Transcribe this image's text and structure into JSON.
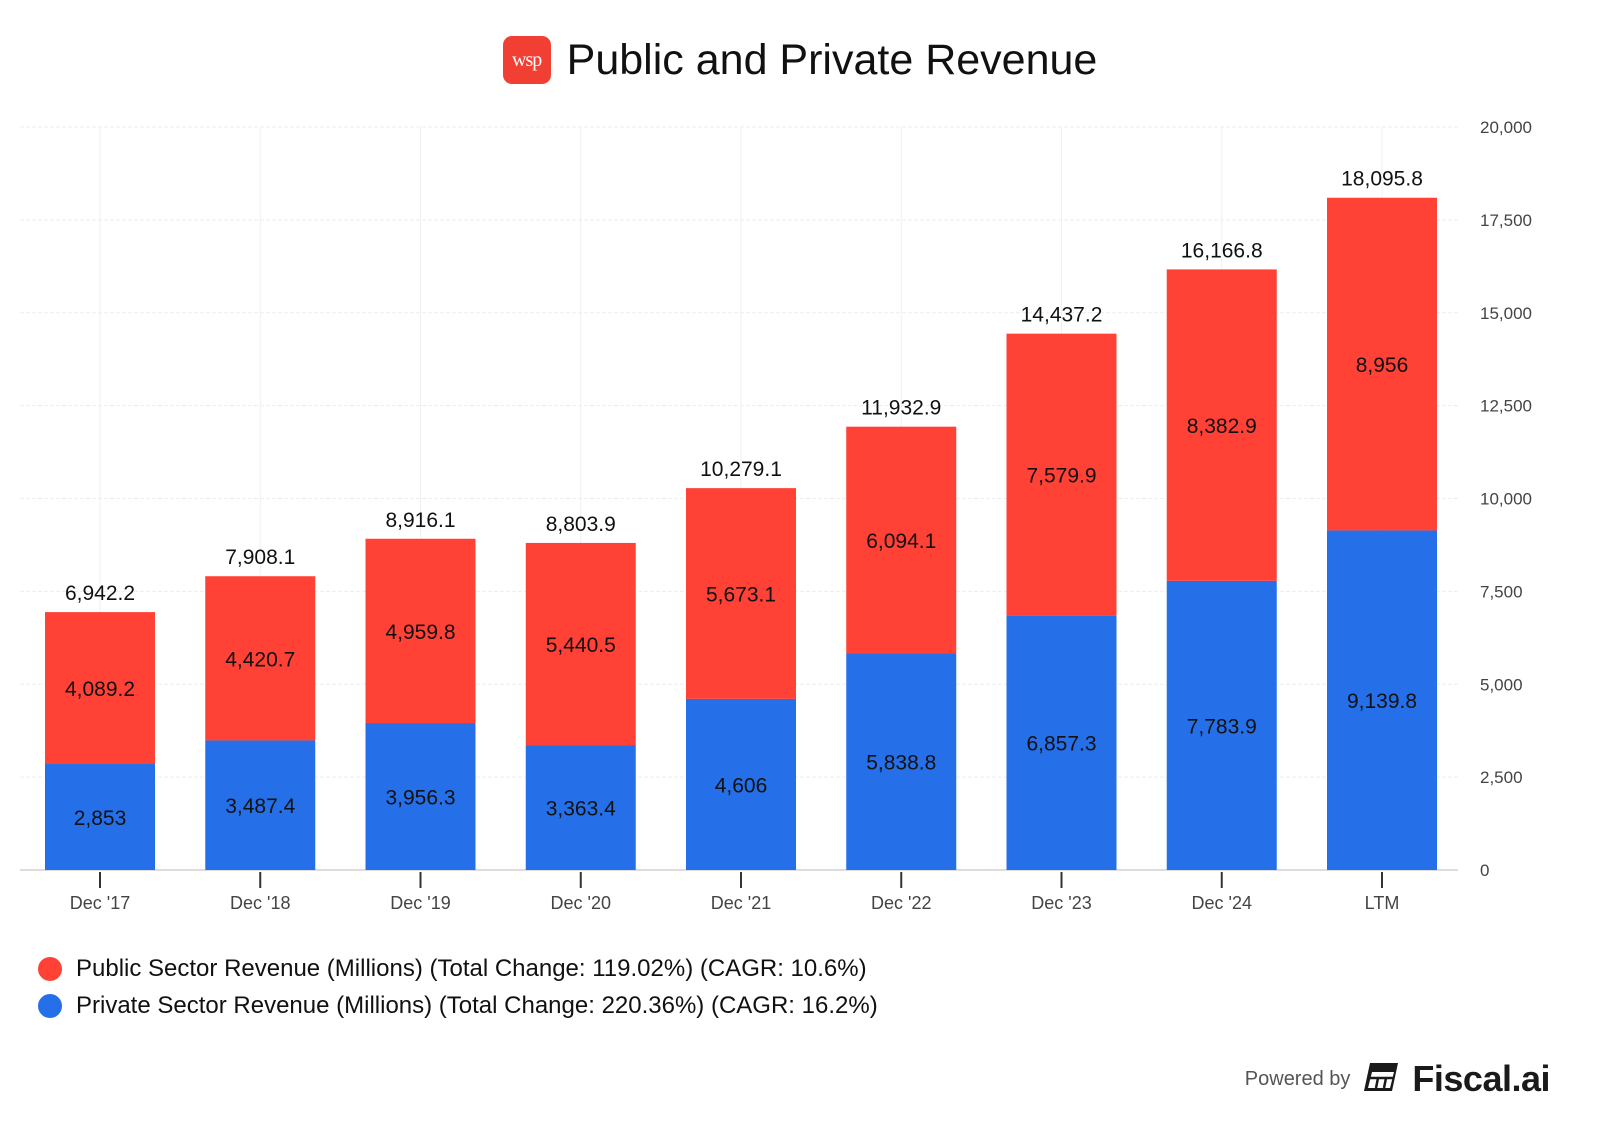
{
  "header": {
    "logo_text": "wsp",
    "title": "Public and Private Revenue"
  },
  "colors": {
    "public": "#ff4136",
    "private": "#2570e8",
    "logo_bg": "#f23f34"
  },
  "legend": [
    {
      "label": "Public Sector Revenue (Millions) (Total Change: 119.02%) (CAGR: 10.6%)",
      "color": "#ff4136"
    },
    {
      "label": "Private Sector Revenue (Millions) (Total Change: 220.36%) (CAGR: 16.2%)",
      "color": "#2570e8"
    }
  ],
  "footer": {
    "powered_by": "Powered by",
    "brand": "Fiscal.ai"
  },
  "chart_data": {
    "type": "bar",
    "stacked": true,
    "title": "Public and Private Revenue",
    "xlabel": "",
    "ylabel": "",
    "ylim": [
      0,
      20000
    ],
    "yticks": [
      0,
      2500,
      5000,
      7500,
      10000,
      12500,
      15000,
      17500,
      20000
    ],
    "ytick_labels": [
      "0",
      "2,500",
      "5,000",
      "7,500",
      "10,000",
      "12,500",
      "15,000",
      "17,500",
      "20,000"
    ],
    "y_axis_side": "right",
    "grid": true,
    "legend_position": "bottom-left",
    "categories": [
      "Dec '17",
      "Dec '18",
      "Dec '19",
      "Dec '20",
      "Dec '21",
      "Dec '22",
      "Dec '23",
      "Dec '24",
      "LTM"
    ],
    "series": [
      {
        "name": "Private Sector Revenue (Millions)",
        "color": "#2570e8",
        "values": [
          2853,
          3487.4,
          3956.3,
          3363.4,
          4606,
          5838.8,
          6857.3,
          7783.9,
          9139.8
        ],
        "labels": [
          "2,853",
          "3,487.4",
          "3,956.3",
          "3,363.4",
          "4,606",
          "5,838.8",
          "6,857.3",
          "7,783.9",
          "9,139.8"
        ]
      },
      {
        "name": "Public Sector Revenue (Millions)",
        "color": "#ff4136",
        "values": [
          4089.2,
          4420.7,
          4959.8,
          5440.5,
          5673.1,
          6094.1,
          7579.9,
          8382.9,
          8956
        ],
        "labels": [
          "4,089.2",
          "4,420.7",
          "4,959.8",
          "5,440.5",
          "5,673.1",
          "6,094.1",
          "7,579.9",
          "8,382.9",
          "8,956"
        ]
      }
    ],
    "totals": [
      6942.2,
      7908.1,
      8916.1,
      8803.9,
      10279.1,
      11932.9,
      14437.2,
      16166.8,
      18095.8
    ],
    "total_labels": [
      "6,942.2",
      "7,908.1",
      "8,916.1",
      "8,803.9",
      "10,279.1",
      "11,932.9",
      "14,437.2",
      "16,166.8",
      "18,095.8"
    ]
  }
}
